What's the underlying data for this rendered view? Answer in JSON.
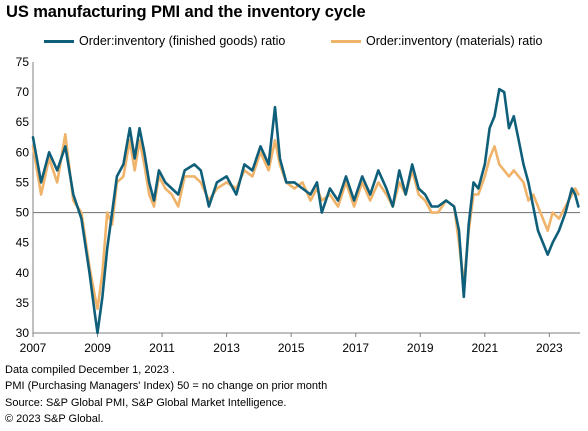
{
  "title": "US manufacturing PMI and the inventory cycle",
  "colors": {
    "finished": "#0f5f7a",
    "materials": "#f0b36a",
    "reference": "#7f7f7f",
    "axis": "#808080"
  },
  "footer": [
    "Data compiled December 1, 2023 .",
    "PMI (Purchasing Managers' Index) 50 = no change on prior month",
    "Source: S&P Global PMI, S&P Global Market Intelligence.",
    "© 2023 S&P Global."
  ],
  "chart_data": {
    "type": "line",
    "title": "US manufacturing PMI and the inventory cycle",
    "xlim": [
      2007,
      2023.95
    ],
    "ylim": [
      30,
      75
    ],
    "x_ticks": [
      "2007",
      "2009",
      "2011",
      "2013",
      "2015",
      "2017",
      "2019",
      "2021",
      "2023"
    ],
    "y_ticks": [
      "30",
      "35",
      "40",
      "45",
      "50",
      "55",
      "60",
      "65",
      "70",
      "75"
    ],
    "reference_line": 50,
    "legend_position": "top",
    "series": [
      {
        "name": "Order:inventory (finished goods) ratio",
        "color": "#0f5f7a",
        "points": [
          [
            2007.0,
            62.5
          ],
          [
            2007.25,
            55
          ],
          [
            2007.5,
            60
          ],
          [
            2007.75,
            57
          ],
          [
            2008.0,
            61
          ],
          [
            2008.25,
            53
          ],
          [
            2008.5,
            49
          ],
          [
            2008.75,
            40
          ],
          [
            2008.92,
            33
          ],
          [
            2009.0,
            30
          ],
          [
            2009.15,
            36
          ],
          [
            2009.3,
            44
          ],
          [
            2009.45,
            50
          ],
          [
            2009.6,
            56
          ],
          [
            2009.8,
            58
          ],
          [
            2010.0,
            64
          ],
          [
            2010.15,
            59
          ],
          [
            2010.3,
            64
          ],
          [
            2010.45,
            60
          ],
          [
            2010.6,
            55
          ],
          [
            2010.75,
            52
          ],
          [
            2010.9,
            57
          ],
          [
            2011.1,
            55
          ],
          [
            2011.3,
            54
          ],
          [
            2011.5,
            53
          ],
          [
            2011.7,
            57
          ],
          [
            2012.0,
            58
          ],
          [
            2012.2,
            57
          ],
          [
            2012.45,
            51
          ],
          [
            2012.7,
            55
          ],
          [
            2013.0,
            56
          ],
          [
            2013.3,
            53
          ],
          [
            2013.55,
            58
          ],
          [
            2013.8,
            57
          ],
          [
            2014.05,
            61
          ],
          [
            2014.3,
            58
          ],
          [
            2014.5,
            67.5
          ],
          [
            2014.65,
            59
          ],
          [
            2014.85,
            55
          ],
          [
            2015.1,
            55
          ],
          [
            2015.35,
            54
          ],
          [
            2015.6,
            53
          ],
          [
            2015.8,
            55
          ],
          [
            2015.95,
            50
          ],
          [
            2016.2,
            54
          ],
          [
            2016.45,
            52
          ],
          [
            2016.7,
            56
          ],
          [
            2016.95,
            52
          ],
          [
            2017.2,
            56
          ],
          [
            2017.45,
            53
          ],
          [
            2017.7,
            57
          ],
          [
            2017.95,
            54
          ],
          [
            2018.15,
            51
          ],
          [
            2018.35,
            57
          ],
          [
            2018.55,
            53
          ],
          [
            2018.75,
            58
          ],
          [
            2018.95,
            54
          ],
          [
            2019.15,
            53
          ],
          [
            2019.35,
            51
          ],
          [
            2019.55,
            51
          ],
          [
            2019.8,
            52
          ],
          [
            2020.05,
            51
          ],
          [
            2020.2,
            47
          ],
          [
            2020.35,
            36
          ],
          [
            2020.5,
            48
          ],
          [
            2020.65,
            55
          ],
          [
            2020.8,
            54
          ],
          [
            2021.0,
            58
          ],
          [
            2021.15,
            64
          ],
          [
            2021.3,
            66
          ],
          [
            2021.45,
            70.5
          ],
          [
            2021.6,
            70
          ],
          [
            2021.75,
            64
          ],
          [
            2021.9,
            66
          ],
          [
            2022.05,
            62
          ],
          [
            2022.2,
            58
          ],
          [
            2022.35,
            55
          ],
          [
            2022.5,
            51
          ],
          [
            2022.65,
            47
          ],
          [
            2022.8,
            45
          ],
          [
            2022.95,
            43
          ],
          [
            2023.1,
            45
          ],
          [
            2023.3,
            47
          ],
          [
            2023.5,
            50
          ],
          [
            2023.7,
            54
          ],
          [
            2023.8,
            53
          ],
          [
            2023.9,
            51
          ]
        ]
      },
      {
        "name": "Order:inventory (materials) ratio",
        "color": "#f0b36a",
        "points": [
          [
            2007.0,
            61
          ],
          [
            2007.25,
            53
          ],
          [
            2007.5,
            59
          ],
          [
            2007.75,
            55
          ],
          [
            2008.0,
            63
          ],
          [
            2008.25,
            52
          ],
          [
            2008.5,
            50
          ],
          [
            2008.75,
            41
          ],
          [
            2008.92,
            36
          ],
          [
            2009.0,
            34
          ],
          [
            2009.15,
            40
          ],
          [
            2009.3,
            50
          ],
          [
            2009.45,
            48
          ],
          [
            2009.6,
            55
          ],
          [
            2009.8,
            56
          ],
          [
            2010.0,
            62
          ],
          [
            2010.15,
            57
          ],
          [
            2010.3,
            62
          ],
          [
            2010.45,
            58
          ],
          [
            2010.6,
            53
          ],
          [
            2010.75,
            51
          ],
          [
            2010.9,
            56
          ],
          [
            2011.1,
            54
          ],
          [
            2011.3,
            53
          ],
          [
            2011.5,
            51
          ],
          [
            2011.7,
            56
          ],
          [
            2012.0,
            56
          ],
          [
            2012.2,
            55
          ],
          [
            2012.45,
            52
          ],
          [
            2012.7,
            54
          ],
          [
            2013.0,
            55
          ],
          [
            2013.3,
            54
          ],
          [
            2013.55,
            57
          ],
          [
            2013.8,
            56
          ],
          [
            2014.05,
            60
          ],
          [
            2014.3,
            57
          ],
          [
            2014.5,
            62
          ],
          [
            2014.65,
            58
          ],
          [
            2014.85,
            55
          ],
          [
            2015.1,
            54
          ],
          [
            2015.35,
            55
          ],
          [
            2015.6,
            52
          ],
          [
            2015.8,
            54
          ],
          [
            2015.95,
            52
          ],
          [
            2016.2,
            53
          ],
          [
            2016.45,
            51
          ],
          [
            2016.7,
            55
          ],
          [
            2016.95,
            51
          ],
          [
            2017.2,
            55
          ],
          [
            2017.45,
            52
          ],
          [
            2017.7,
            55
          ],
          [
            2017.95,
            53
          ],
          [
            2018.15,
            51
          ],
          [
            2018.35,
            55
          ],
          [
            2018.55,
            53
          ],
          [
            2018.75,
            57
          ],
          [
            2018.95,
            53
          ],
          [
            2019.15,
            52
          ],
          [
            2019.35,
            50
          ],
          [
            2019.55,
            50
          ],
          [
            2019.8,
            52
          ],
          [
            2020.05,
            51
          ],
          [
            2020.2,
            45
          ],
          [
            2020.35,
            38
          ],
          [
            2020.5,
            47
          ],
          [
            2020.65,
            53
          ],
          [
            2020.8,
            53
          ],
          [
            2021.0,
            56
          ],
          [
            2021.15,
            59
          ],
          [
            2021.3,
            61
          ],
          [
            2021.45,
            58
          ],
          [
            2021.6,
            57
          ],
          [
            2021.75,
            56
          ],
          [
            2021.9,
            57
          ],
          [
            2022.05,
            56
          ],
          [
            2022.2,
            55
          ],
          [
            2022.35,
            52
          ],
          [
            2022.5,
            53
          ],
          [
            2022.65,
            51
          ],
          [
            2022.8,
            49
          ],
          [
            2022.95,
            47
          ],
          [
            2023.1,
            50
          ],
          [
            2023.3,
            49
          ],
          [
            2023.5,
            51
          ],
          [
            2023.7,
            53
          ],
          [
            2023.8,
            54
          ],
          [
            2023.9,
            53
          ]
        ]
      }
    ]
  }
}
